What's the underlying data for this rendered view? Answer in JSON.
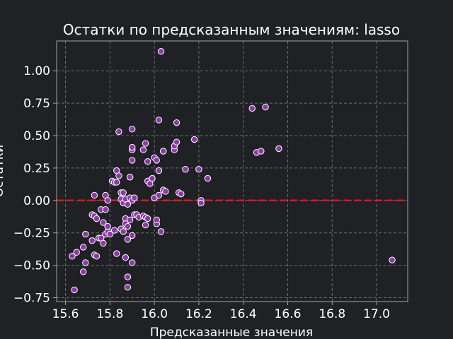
{
  "chart_data": {
    "type": "scatter",
    "title": "Остатки по предсказанным значениям: lasso",
    "xlabel": "Предсказанные значения",
    "ylabel": "Остатки",
    "xlim": [
      15.56,
      17.14
    ],
    "ylim": [
      -0.78,
      1.23
    ],
    "x_ticks": [
      "15.6",
      "15.8",
      "16.0",
      "16.2",
      "16.4",
      "16.6",
      "16.8",
      "17.0"
    ],
    "y_ticks": [
      "−0.75",
      "−0.50",
      "−0.25",
      "0.00",
      "0.25",
      "0.50",
      "0.75",
      "1.00"
    ],
    "x_tick_values": [
      15.6,
      15.8,
      16.0,
      16.2,
      16.4,
      16.6,
      16.8,
      17.0
    ],
    "y_tick_values": [
      -0.75,
      -0.5,
      -0.25,
      0.0,
      0.25,
      0.5,
      0.75,
      1.0
    ],
    "grid": true,
    "reference_line": {
      "y": 0.0,
      "style": "dashed",
      "color": "#e0151c"
    },
    "colors": {
      "background": "#1f2125",
      "marker_fill": "#8c3aa6",
      "marker_edge": "#ffffff",
      "grid": "#6a6c70",
      "spine": "#a0a2a6"
    },
    "points": [
      [
        15.63,
        -0.43
      ],
      [
        15.64,
        -0.69
      ],
      [
        15.65,
        -0.4
      ],
      [
        15.68,
        -0.36
      ],
      [
        15.68,
        -0.55
      ],
      [
        15.69,
        -0.48
      ],
      [
        15.69,
        -0.26
      ],
      [
        15.72,
        -0.11
      ],
      [
        15.72,
        -0.31
      ],
      [
        15.73,
        0.04
      ],
      [
        15.73,
        -0.12
      ],
      [
        15.73,
        -0.42
      ],
      [
        15.74,
        -0.43
      ],
      [
        15.74,
        -0.14
      ],
      [
        15.75,
        -0.29
      ],
      [
        15.76,
        -0.07
      ],
      [
        15.76,
        -0.29
      ],
      [
        15.77,
        -0.17
      ],
      [
        15.77,
        -0.33
      ],
      [
        15.78,
        -0.07
      ],
      [
        15.78,
        -0.26
      ],
      [
        15.78,
        0.04
      ],
      [
        15.79,
        -0.24
      ],
      [
        15.79,
        0.0
      ],
      [
        15.79,
        -0.2
      ],
      [
        15.8,
        -0.26
      ],
      [
        15.81,
        0.15
      ],
      [
        15.82,
        -0.23
      ],
      [
        15.82,
        0.14
      ],
      [
        15.83,
        0.14
      ],
      [
        15.83,
        -0.41
      ],
      [
        15.83,
        0.23
      ],
      [
        15.84,
        0.19
      ],
      [
        15.84,
        0.53
      ],
      [
        15.85,
        -0.22
      ],
      [
        15.85,
        0.06
      ],
      [
        15.85,
        0.01
      ],
      [
        15.86,
        0.06
      ],
      [
        15.86,
        -0.24
      ],
      [
        15.86,
        -0.02
      ],
      [
        15.87,
        -0.14
      ],
      [
        15.87,
        0.01
      ],
      [
        15.87,
        -0.18
      ],
      [
        15.87,
        -0.44
      ],
      [
        15.88,
        -0.67
      ],
      [
        15.88,
        -0.59
      ],
      [
        15.88,
        -0.3
      ],
      [
        15.88,
        -0.2
      ],
      [
        15.88,
        -0.03
      ],
      [
        15.89,
        0.18
      ],
      [
        15.89,
        0.02
      ],
      [
        15.89,
        -0.15
      ],
      [
        15.89,
        0.18
      ],
      [
        15.9,
        -0.48
      ],
      [
        15.9,
        -0.27
      ],
      [
        15.9,
        0.39
      ],
      [
        15.9,
        0.41
      ],
      [
        15.9,
        0.55
      ],
      [
        15.9,
        0.31
      ],
      [
        15.9,
        0.0
      ],
      [
        15.91,
        0.02
      ],
      [
        15.91,
        -0.11
      ],
      [
        15.92,
        -0.11
      ],
      [
        15.93,
        -0.13
      ],
      [
        15.95,
        -0.12
      ],
      [
        15.95,
        0.39
      ],
      [
        15.96,
        -0.19
      ],
      [
        15.96,
        -0.13
      ],
      [
        15.96,
        0.44
      ],
      [
        15.97,
        0.3
      ],
      [
        15.97,
        0.15
      ],
      [
        15.97,
        -0.14
      ],
      [
        15.98,
        0.13
      ],
      [
        15.99,
        0.17
      ],
      [
        16.0,
        0.33
      ],
      [
        16.0,
        0.02
      ],
      [
        16.01,
        -0.18
      ],
      [
        16.01,
        -0.15
      ],
      [
        16.01,
        0.31
      ],
      [
        16.02,
        0.23
      ],
      [
        16.02,
        0.62
      ],
      [
        16.02,
        0.04
      ],
      [
        16.03,
        1.15
      ],
      [
        16.03,
        -0.24
      ],
      [
        16.04,
        0.08
      ],
      [
        16.04,
        0.38
      ],
      [
        16.04,
        0.38
      ],
      [
        16.05,
        0.07
      ],
      [
        16.09,
        0.39
      ],
      [
        16.09,
        0.42
      ],
      [
        16.1,
        0.6
      ],
      [
        16.1,
        0.45
      ],
      [
        16.11,
        0.06
      ],
      [
        16.12,
        0.05
      ],
      [
        16.14,
        0.24
      ],
      [
        16.18,
        0.47
      ],
      [
        16.2,
        0.24
      ],
      [
        16.21,
        0.0
      ],
      [
        16.21,
        -0.02
      ],
      [
        16.24,
        0.17
      ],
      [
        16.44,
        0.71
      ],
      [
        16.46,
        0.37
      ],
      [
        16.48,
        0.38
      ],
      [
        16.5,
        0.72
      ],
      [
        16.56,
        0.4
      ],
      [
        17.07,
        -0.46
      ]
    ]
  }
}
